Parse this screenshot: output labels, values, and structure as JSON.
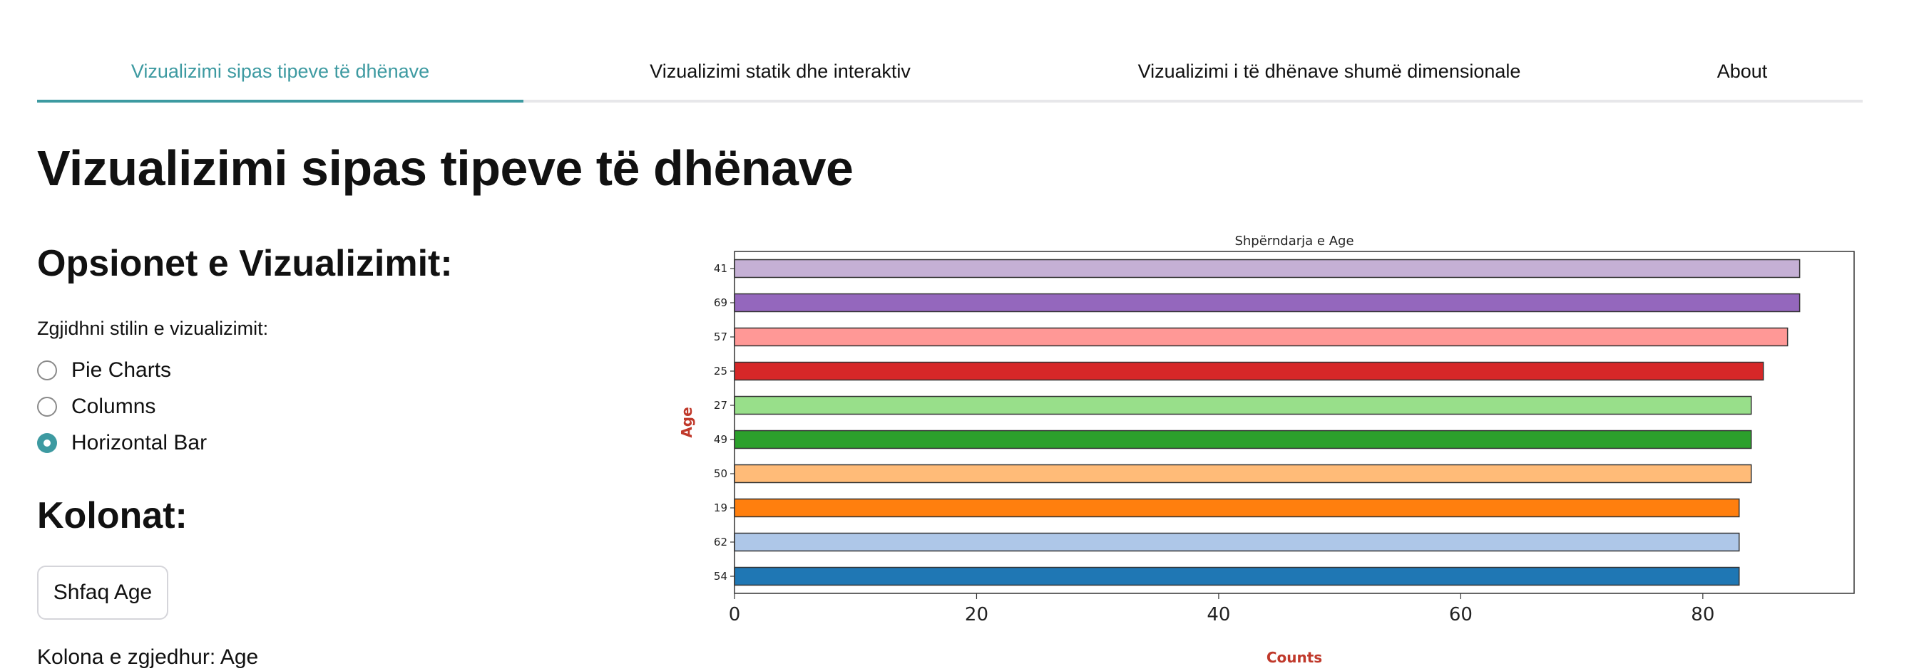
{
  "tabs": [
    {
      "label": "Vizualizimi sipas tipeve të dhënave",
      "active": true
    },
    {
      "label": "Vizualizimi statik dhe interaktiv",
      "active": false
    },
    {
      "label": "Vizualizimi i të dhënave shumë dimensionale",
      "active": false
    },
    {
      "label": "About",
      "active": false
    }
  ],
  "page_title": "Vizualizimi sipas tipeve të dhënave",
  "options": {
    "heading": "Opsionet e Vizualizimit:",
    "prompt": "Zgjidhni stilin e vizualizimit:",
    "choices": [
      {
        "label": "Pie Charts",
        "checked": false
      },
      {
        "label": "Columns",
        "checked": false
      },
      {
        "label": "Horizontal Bar",
        "checked": true
      }
    ]
  },
  "columns": {
    "heading": "Kolonat:",
    "button_label": "Shfaq Age",
    "selected_text": "Kolona e zgjedhur: Age"
  },
  "colors": {
    "accent": "#3d9aa1",
    "axis_label": "#c0392b"
  },
  "chart_data": {
    "type": "bar",
    "orientation": "horizontal",
    "title": "Shpërndarja e Age",
    "xlabel": "Counts",
    "ylabel": "Age",
    "categories": [
      "41",
      "69",
      "57",
      "25",
      "27",
      "49",
      "50",
      "19",
      "62",
      "54"
    ],
    "values": [
      88,
      88,
      87,
      85,
      84,
      84,
      84,
      83,
      83,
      83
    ],
    "colors": [
      "#c5b0d5",
      "#9467bd",
      "#ff9896",
      "#d62728",
      "#98df8a",
      "#2ca02c",
      "#ffbb78",
      "#ff7f0e",
      "#aec7e8",
      "#1f77b4"
    ],
    "xlim": [
      0,
      92.5
    ],
    "xticks": [
      0,
      20,
      40,
      60,
      80
    ],
    "grid": false,
    "legend": "none"
  }
}
